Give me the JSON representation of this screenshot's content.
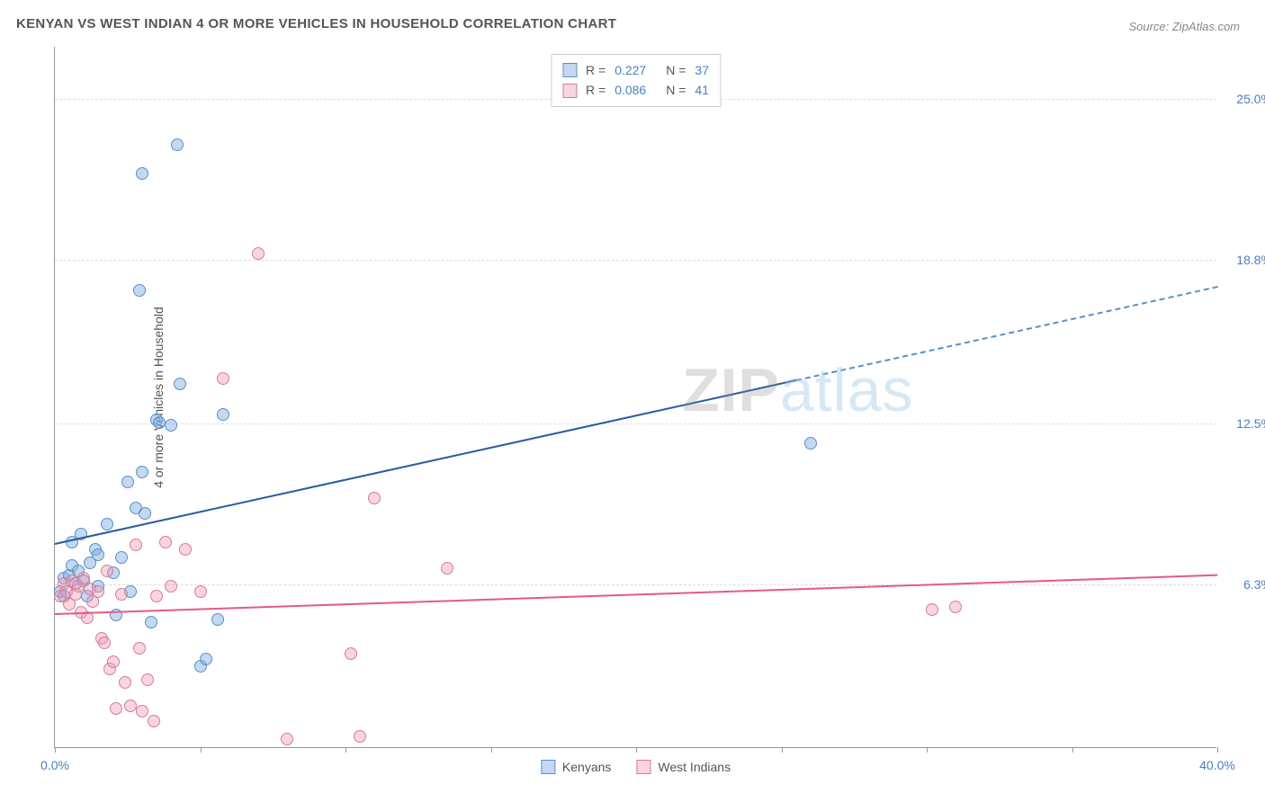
{
  "title": "KENYAN VS WEST INDIAN 4 OR MORE VEHICLES IN HOUSEHOLD CORRELATION CHART",
  "source": "Source: ZipAtlas.com",
  "ylabel": "4 or more Vehicles in Household",
  "watermark": {
    "bold": "ZIP",
    "light": "atlas"
  },
  "chart": {
    "type": "scatter",
    "xlim": [
      0,
      40
    ],
    "ylim": [
      0,
      27
    ],
    "xtick_positions": [
      0,
      5,
      10,
      15,
      20,
      25,
      30,
      35,
      40
    ],
    "xtick_labels": {
      "0": "0.0%",
      "40": "40.0%"
    },
    "ytick_positions": [
      6.3,
      12.5,
      18.8,
      25.0
    ],
    "ytick_labels": [
      "6.3%",
      "12.5%",
      "18.8%",
      "25.0%"
    ],
    "background_color": "#ffffff",
    "grid_color": "#dddddd",
    "axis_color": "#999999",
    "tick_label_color": "#4a7ec7",
    "marker_radius": 7,
    "series": [
      {
        "name": "Kenyans",
        "color_fill": "rgba(124,170,224,0.45)",
        "color_stroke": "#5a8fc7",
        "trend_color": "#2c5aa0",
        "R": "0.227",
        "N": "37",
        "trend": {
          "x0": 0,
          "y0": 7.9,
          "x1": 25.5,
          "y1": 14.2,
          "x2": 40,
          "y2": 17.8
        },
        "points": [
          [
            0.2,
            6.0
          ],
          [
            0.3,
            6.5
          ],
          [
            0.3,
            5.8
          ],
          [
            0.5,
            6.6
          ],
          [
            0.6,
            7.0
          ],
          [
            0.6,
            7.9
          ],
          [
            0.7,
            6.3
          ],
          [
            0.8,
            6.8
          ],
          [
            0.9,
            8.2
          ],
          [
            1.0,
            6.4
          ],
          [
            1.1,
            5.8
          ],
          [
            1.2,
            7.1
          ],
          [
            1.4,
            7.6
          ],
          [
            1.5,
            6.2
          ],
          [
            1.5,
            7.4
          ],
          [
            1.8,
            8.6
          ],
          [
            2.0,
            6.7
          ],
          [
            2.1,
            5.1
          ],
          [
            2.3,
            7.3
          ],
          [
            2.5,
            10.2
          ],
          [
            2.6,
            6.0
          ],
          [
            2.8,
            9.2
          ],
          [
            3.0,
            10.6
          ],
          [
            3.1,
            9.0
          ],
          [
            3.3,
            4.8
          ],
          [
            3.5,
            12.6
          ],
          [
            3.6,
            12.5
          ],
          [
            4.0,
            12.4
          ],
          [
            2.9,
            17.6
          ],
          [
            3.0,
            22.1
          ],
          [
            4.2,
            23.2
          ],
          [
            4.3,
            14.0
          ],
          [
            5.0,
            3.1
          ],
          [
            5.2,
            3.4
          ],
          [
            5.6,
            4.9
          ],
          [
            5.8,
            12.8
          ],
          [
            26.0,
            11.7
          ]
        ]
      },
      {
        "name": "West Indians",
        "color_fill": "rgba(238,154,178,0.42)",
        "color_stroke": "#d67c96",
        "trend_color": "#e55a88",
        "R": "0.086",
        "N": "41",
        "trend": {
          "x0": 0,
          "y0": 5.2,
          "x1": 40,
          "y1": 6.7
        },
        "points": [
          [
            0.2,
            5.8
          ],
          [
            0.3,
            6.3
          ],
          [
            0.4,
            6.0
          ],
          [
            0.5,
            5.5
          ],
          [
            0.6,
            6.4
          ],
          [
            0.7,
            5.9
          ],
          [
            0.8,
            6.2
          ],
          [
            0.9,
            5.2
          ],
          [
            1.0,
            6.5
          ],
          [
            1.1,
            5.0
          ],
          [
            1.2,
            6.1
          ],
          [
            1.3,
            5.6
          ],
          [
            1.5,
            6.0
          ],
          [
            1.6,
            4.2
          ],
          [
            1.7,
            4.0
          ],
          [
            1.8,
            6.8
          ],
          [
            1.9,
            3.0
          ],
          [
            2.0,
            3.3
          ],
          [
            2.1,
            1.5
          ],
          [
            2.3,
            5.9
          ],
          [
            2.4,
            2.5
          ],
          [
            2.6,
            1.6
          ],
          [
            2.8,
            7.8
          ],
          [
            2.9,
            3.8
          ],
          [
            3.0,
            1.4
          ],
          [
            3.2,
            2.6
          ],
          [
            3.4,
            1.0
          ],
          [
            3.5,
            5.8
          ],
          [
            3.8,
            7.9
          ],
          [
            4.0,
            6.2
          ],
          [
            4.5,
            7.6
          ],
          [
            5.0,
            6.0
          ],
          [
            5.8,
            14.2
          ],
          [
            7.0,
            19.0
          ],
          [
            8.0,
            0.3
          ],
          [
            10.2,
            3.6
          ],
          [
            10.5,
            0.4
          ],
          [
            11.0,
            9.6
          ],
          [
            13.5,
            6.9
          ],
          [
            30.2,
            5.3
          ],
          [
            31.0,
            5.4
          ]
        ]
      }
    ],
    "series_legend": [
      "Kenyans",
      "West Indians"
    ]
  }
}
